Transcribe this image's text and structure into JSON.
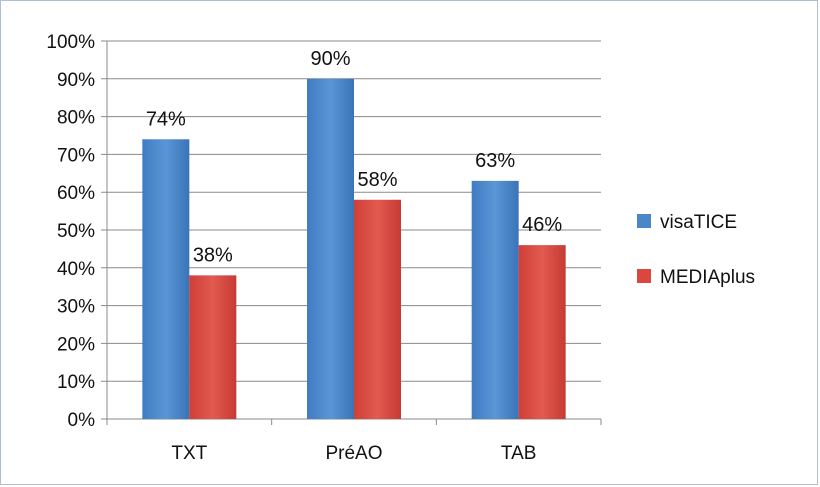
{
  "chart_data": {
    "type": "bar",
    "categories": [
      "TXT",
      "PréAO",
      "TAB"
    ],
    "series": [
      {
        "name": "visaTICE",
        "values": [
          74,
          90,
          63
        ],
        "color": "#4a86c8",
        "labels": [
          "74%",
          "90%",
          "63%"
        ]
      },
      {
        "name": "MEDIAplus",
        "values": [
          38,
          58,
          46
        ],
        "color": "#d9473f",
        "labels": [
          "38%",
          "58%",
          "46%"
        ]
      }
    ],
    "ylim": [
      0,
      100
    ],
    "y_ticks": [
      "0%",
      "10%",
      "20%",
      "30%",
      "40%",
      "50%",
      "60%",
      "70%",
      "80%",
      "90%",
      "100%"
    ],
    "grid": true,
    "legend_position": "right",
    "title": "",
    "xlabel": "",
    "ylabel": ""
  }
}
